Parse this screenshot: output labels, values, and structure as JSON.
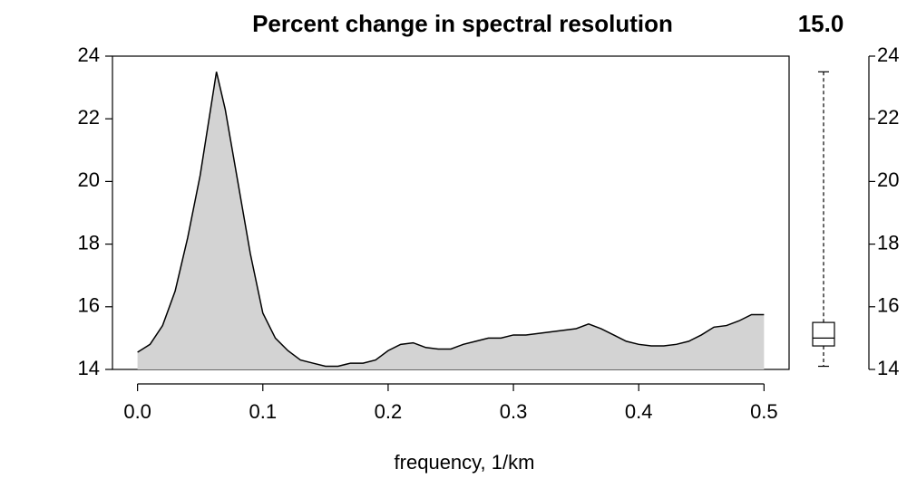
{
  "chart_data": {
    "type": "area",
    "title": "Percent change in spectral resolution",
    "annotation": "15.0",
    "x_label": "frequency, 1/km",
    "x": [
      0,
      0.01,
      0.02,
      0.03,
      0.04,
      0.05,
      0.063,
      0.07,
      0.08,
      0.09,
      0.1,
      0.11,
      0.12,
      0.13,
      0.14,
      0.15,
      0.16,
      0.17,
      0.18,
      0.19,
      0.2,
      0.21,
      0.22,
      0.23,
      0.24,
      0.25,
      0.26,
      0.27,
      0.28,
      0.29,
      0.3,
      0.31,
      0.32,
      0.33,
      0.34,
      0.35,
      0.36,
      0.37,
      0.38,
      0.39,
      0.4,
      0.41,
      0.42,
      0.43,
      0.44,
      0.45,
      0.46,
      0.47,
      0.48,
      0.49,
      0.5
    ],
    "values": [
      14.55,
      14.8,
      15.4,
      16.5,
      18.2,
      20.2,
      23.5,
      22.3,
      20.0,
      17.7,
      15.8,
      15.0,
      14.6,
      14.3,
      14.2,
      14.1,
      14.1,
      14.2,
      14.2,
      14.3,
      14.6,
      14.8,
      14.85,
      14.7,
      14.65,
      14.65,
      14.8,
      14.9,
      15.0,
      15.0,
      15.1,
      15.1,
      15.15,
      15.2,
      15.25,
      15.3,
      15.45,
      15.3,
      15.1,
      14.9,
      14.8,
      14.75,
      14.75,
      14.8,
      14.9,
      15.1,
      15.35,
      15.4,
      15.55,
      15.75,
      15.75
    ],
    "color": "#d3d3d3",
    "xlim": [
      -0.02,
      0.52
    ],
    "ylim": [
      14,
      24
    ],
    "xticks": [
      {
        "value": 0,
        "label": "0.0"
      },
      0.1,
      0.2,
      0.3,
      0.4,
      0.5
    ],
    "yticks": [
      14,
      16,
      18,
      20,
      22,
      24
    ],
    "boxplot": {
      "min": 14.1,
      "q1": 14.75,
      "median": 15.0,
      "q3": 15.5,
      "max": 23.5
    },
    "y2lim": [
      14,
      24
    ],
    "y2ticks": [
      14,
      16,
      18,
      20,
      22,
      24
    ]
  }
}
